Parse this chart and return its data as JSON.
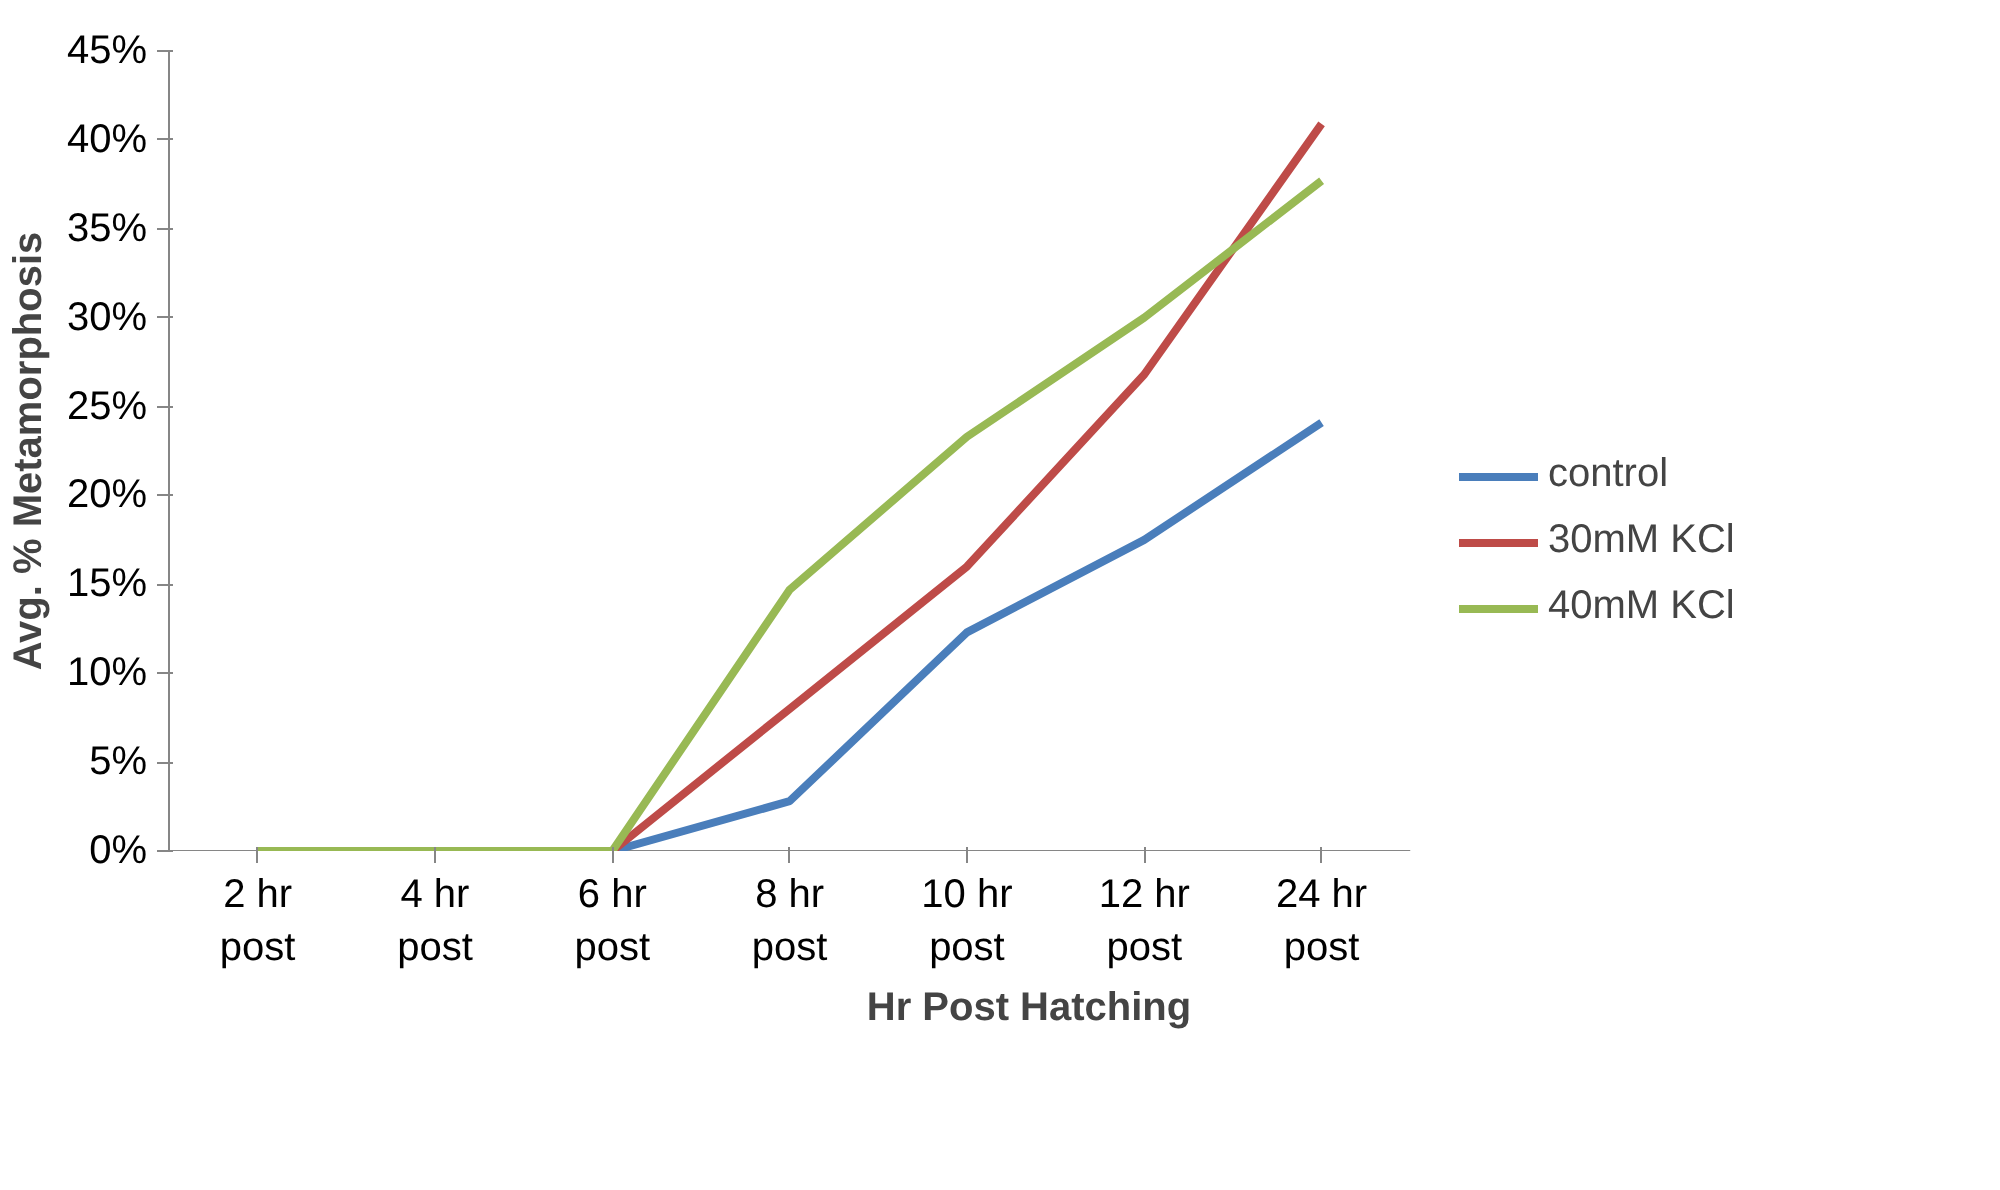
{
  "chart_data": {
    "type": "line",
    "xlabel": "Hr Post Hatching",
    "ylabel": "Avg. % Metamorphosis",
    "categories": [
      "2 hr\npost",
      "4 hr\npost",
      "6 hr\npost",
      "8 hr\npost",
      "10 hr\npost",
      "12 hr\npost",
      "24 hr\npost"
    ],
    "series": [
      {
        "name": "control",
        "color": "#4a7ebb",
        "values": [
          0,
          0,
          0,
          2.8,
          12.3,
          17.5,
          24.1
        ]
      },
      {
        "name": "30mM KCl",
        "color": "#be4b48",
        "values": [
          0,
          0,
          0,
          8,
          16,
          26.8,
          40.9
        ]
      },
      {
        "name": "40mM KCl",
        "color": "#98b954",
        "values": [
          0,
          0,
          0,
          14.7,
          23.3,
          30.0,
          37.7
        ]
      }
    ],
    "ylim": [
      0,
      45
    ],
    "yticks": [
      {
        "value": 0,
        "label": "0%"
      },
      {
        "value": 5,
        "label": "5%"
      },
      {
        "value": 10,
        "label": "10%"
      },
      {
        "value": 15,
        "label": "15%"
      },
      {
        "value": 20,
        "label": "20%"
      },
      {
        "value": 25,
        "label": "25%"
      },
      {
        "value": 30,
        "label": "30%"
      },
      {
        "value": 35,
        "label": "35%"
      },
      {
        "value": 40,
        "label": "40%"
      },
      {
        "value": 45,
        "label": "45%"
      }
    ],
    "grid": false,
    "legend": "right",
    "marker": "none",
    "line_style": "solid"
  }
}
